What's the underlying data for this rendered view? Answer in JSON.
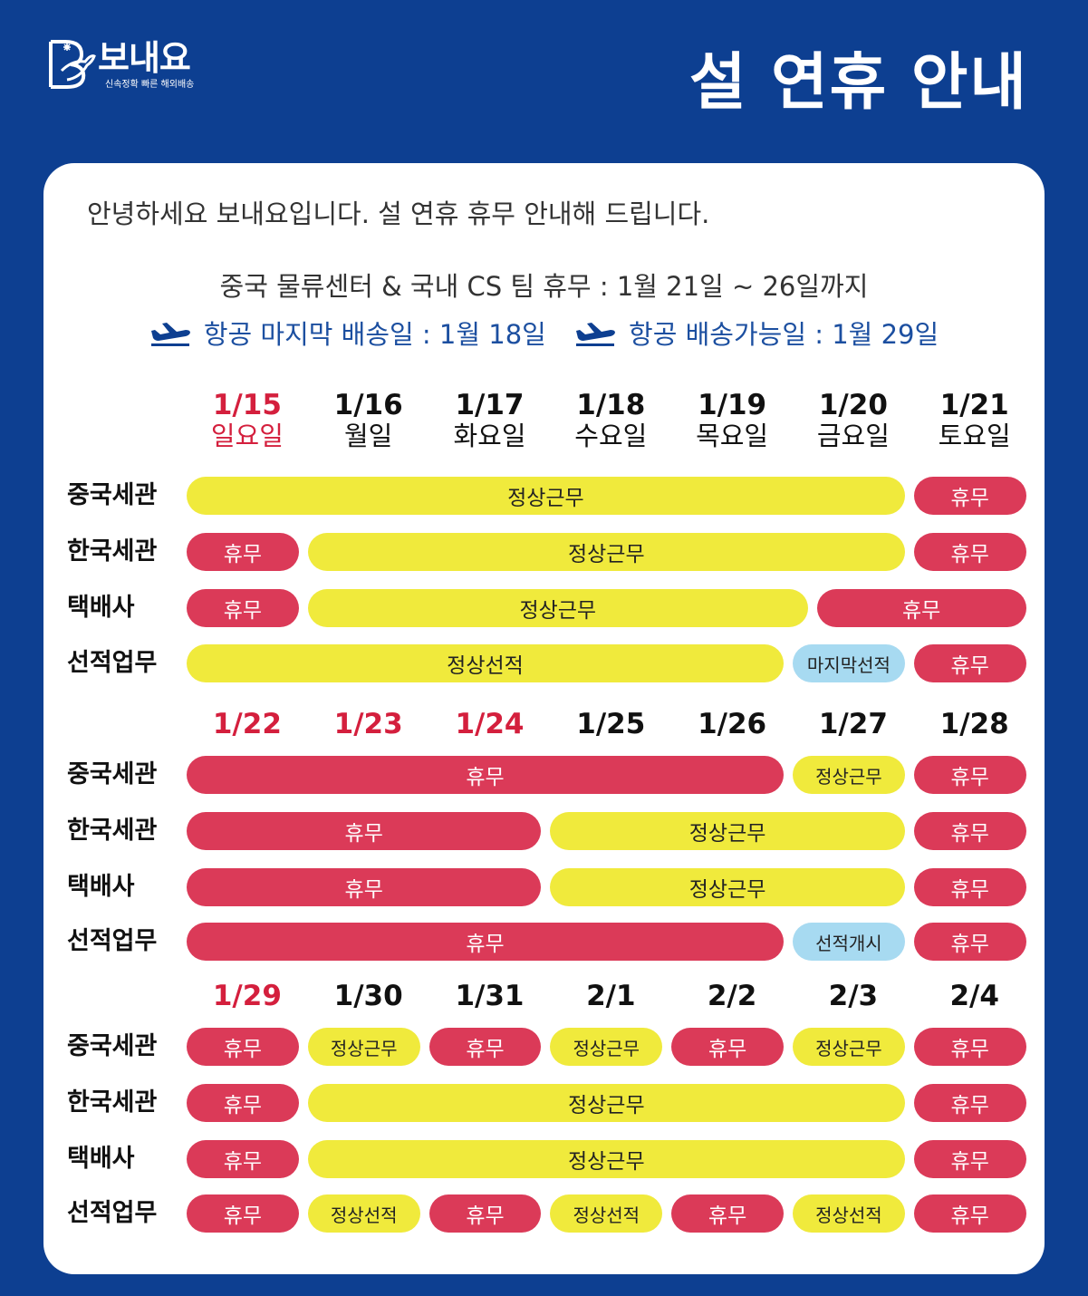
{
  "brand": {
    "name": "보내요",
    "tagline": "신속정확 빠른 해외배송"
  },
  "title": "설 연휴 안내",
  "greeting": "안녕하세요 보내요입니다. 설 연휴 휴무 안내해 드립니다.",
  "notice": "중국 물류센터 & 국내 CS 팀 휴무 : 1월 21일 ~ 26일까지",
  "flights": [
    {
      "icon": "airplane-icon",
      "text": "항공 마지막 배송일 : 1월 18일"
    },
    {
      "icon": "airplane-icon",
      "text": "항공 배송가능일 : 1월 29일"
    }
  ],
  "colors": {
    "background": "#0d3f91",
    "work": "#f0ea3c",
    "holiday": "#db3a58",
    "special": "#a7daf1",
    "holiday_date": "#d41f3d"
  },
  "weeks": [
    {
      "days": [
        {
          "date": "1/15",
          "weekday": "일요일",
          "holiday": true
        },
        {
          "date": "1/16",
          "weekday": "월일",
          "holiday": false
        },
        {
          "date": "1/17",
          "weekday": "화요일",
          "holiday": false
        },
        {
          "date": "1/18",
          "weekday": "수요일",
          "holiday": false
        },
        {
          "date": "1/19",
          "weekday": "목요일",
          "holiday": false
        },
        {
          "date": "1/20",
          "weekday": "금요일",
          "holiday": false
        },
        {
          "date": "1/21",
          "weekday": "토요일",
          "holiday": false
        }
      ],
      "rows": [
        {
          "label": "중국세관",
          "bars": [
            {
              "start": 0,
              "span": 6,
              "text": "정상근무",
              "type": "yellow"
            },
            {
              "start": 6,
              "span": 1,
              "text": "휴무",
              "type": "red"
            }
          ]
        },
        {
          "label": "한국세관",
          "bars": [
            {
              "start": 0,
              "span": 1,
              "text": "휴무",
              "type": "red"
            },
            {
              "start": 1,
              "span": 5,
              "text": "정상근무",
              "type": "yellow"
            },
            {
              "start": 6,
              "span": 1,
              "text": "휴무",
              "type": "red"
            }
          ]
        },
        {
          "label": "택배사",
          "bars": [
            {
              "start": 0,
              "span": 1,
              "text": "휴무",
              "type": "red"
            },
            {
              "start": 1,
              "span": 4.2,
              "text": "정상근무",
              "type": "yellow"
            },
            {
              "start": 5.2,
              "span": 1.8,
              "text": "휴무",
              "type": "red"
            }
          ]
        },
        {
          "label": "선적업무",
          "bars": [
            {
              "start": 0,
              "span": 5,
              "text": "정상선적",
              "type": "yellow"
            },
            {
              "start": 5,
              "span": 1,
              "text": "마지막선적",
              "type": "blue"
            },
            {
              "start": 6,
              "span": 1,
              "text": "휴무",
              "type": "red"
            }
          ]
        }
      ]
    },
    {
      "days": [
        {
          "date": "1/22",
          "holiday": true
        },
        {
          "date": "1/23",
          "holiday": true
        },
        {
          "date": "1/24",
          "holiday": true
        },
        {
          "date": "1/25",
          "holiday": false
        },
        {
          "date": "1/26",
          "holiday": false
        },
        {
          "date": "1/27",
          "holiday": false
        },
        {
          "date": "1/28",
          "holiday": false
        }
      ],
      "rows": [
        {
          "label": "중국세관",
          "bars": [
            {
              "start": 0,
              "span": 5,
              "text": "휴무",
              "type": "red"
            },
            {
              "start": 5,
              "span": 1,
              "text": "정상근무",
              "type": "yellow"
            },
            {
              "start": 6,
              "span": 1,
              "text": "휴무",
              "type": "red"
            }
          ]
        },
        {
          "label": "한국세관",
          "bars": [
            {
              "start": 0,
              "span": 3,
              "text": "휴무",
              "type": "red"
            },
            {
              "start": 3,
              "span": 3,
              "text": "정상근무",
              "type": "yellow"
            },
            {
              "start": 6,
              "span": 1,
              "text": "휴무",
              "type": "red"
            }
          ]
        },
        {
          "label": "택배사",
          "bars": [
            {
              "start": 0,
              "span": 3,
              "text": "휴무",
              "type": "red"
            },
            {
              "start": 3,
              "span": 3,
              "text": "정상근무",
              "type": "yellow"
            },
            {
              "start": 6,
              "span": 1,
              "text": "휴무",
              "type": "red"
            }
          ]
        },
        {
          "label": "선적업무",
          "bars": [
            {
              "start": 0,
              "span": 5,
              "text": "휴무",
              "type": "red"
            },
            {
              "start": 5,
              "span": 1,
              "text": "선적개시",
              "type": "blue"
            },
            {
              "start": 6,
              "span": 1,
              "text": "휴무",
              "type": "red"
            }
          ]
        }
      ]
    },
    {
      "days": [
        {
          "date": "1/29",
          "holiday": true
        },
        {
          "date": "1/30",
          "holiday": false
        },
        {
          "date": "1/31",
          "holiday": false
        },
        {
          "date": "2/1",
          "holiday": false
        },
        {
          "date": "2/2",
          "holiday": false
        },
        {
          "date": "2/3",
          "holiday": false
        },
        {
          "date": "2/4",
          "holiday": false
        }
      ],
      "rows": [
        {
          "label": "중국세관",
          "bars": [
            {
              "start": 0,
              "span": 1,
              "text": "휴무",
              "type": "red"
            },
            {
              "start": 1,
              "span": 1,
              "text": "정상근무",
              "type": "yellow"
            },
            {
              "start": 2,
              "span": 1,
              "text": "휴무",
              "type": "red"
            },
            {
              "start": 3,
              "span": 1,
              "text": "정상근무",
              "type": "yellow"
            },
            {
              "start": 4,
              "span": 1,
              "text": "휴무",
              "type": "red"
            },
            {
              "start": 5,
              "span": 1,
              "text": "정상근무",
              "type": "yellow"
            },
            {
              "start": 6,
              "span": 1,
              "text": "휴무",
              "type": "red"
            }
          ]
        },
        {
          "label": "한국세관",
          "bars": [
            {
              "start": 0,
              "span": 1,
              "text": "휴무",
              "type": "red"
            },
            {
              "start": 1,
              "span": 5,
              "text": "정상근무",
              "type": "yellow"
            },
            {
              "start": 6,
              "span": 1,
              "text": "휴무",
              "type": "red"
            }
          ]
        },
        {
          "label": "택배사",
          "bars": [
            {
              "start": 0,
              "span": 1,
              "text": "휴무",
              "type": "red"
            },
            {
              "start": 1,
              "span": 5,
              "text": "정상근무",
              "type": "yellow"
            },
            {
              "start": 6,
              "span": 1,
              "text": "휴무",
              "type": "red"
            }
          ]
        },
        {
          "label": "선적업무",
          "bars": [
            {
              "start": 0,
              "span": 1,
              "text": "휴무",
              "type": "red"
            },
            {
              "start": 1,
              "span": 1,
              "text": "정상선적",
              "type": "yellow"
            },
            {
              "start": 2,
              "span": 1,
              "text": "휴무",
              "type": "red"
            },
            {
              "start": 3,
              "span": 1,
              "text": "정상선적",
              "type": "yellow"
            },
            {
              "start": 4,
              "span": 1,
              "text": "휴무",
              "type": "red"
            },
            {
              "start": 5,
              "span": 1,
              "text": "정상선적",
              "type": "yellow"
            },
            {
              "start": 6,
              "span": 1,
              "text": "휴무",
              "type": "red"
            }
          ]
        }
      ]
    }
  ]
}
